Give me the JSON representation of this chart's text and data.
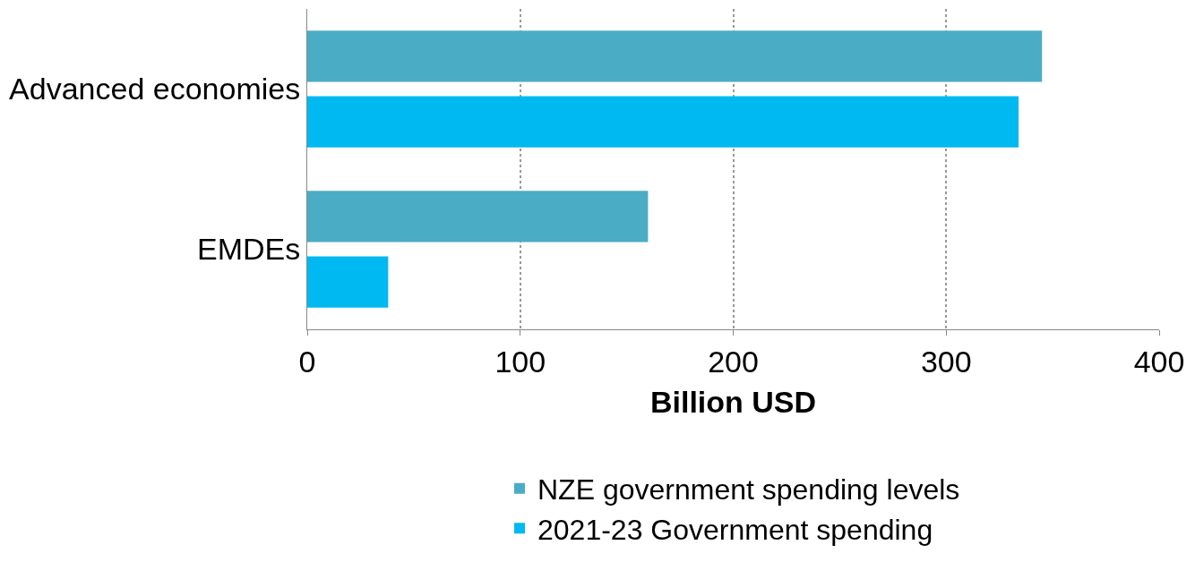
{
  "chart_data": {
    "type": "bar",
    "orientation": "horizontal",
    "xlabel": "Billion USD",
    "categories": [
      "Advanced economies",
      "EMDEs"
    ],
    "series": [
      {
        "name": "NZE government spending levels",
        "color": "#4bacc6",
        "values": [
          345,
          160
        ]
      },
      {
        "name": "2021-23 Government spending",
        "color": "#00b9f1",
        "values": [
          334,
          38
        ]
      }
    ],
    "xlim": [
      0,
      400
    ],
    "xticks": [
      0,
      100,
      200,
      300,
      400
    ],
    "grid": "x",
    "legend": "bottom"
  }
}
